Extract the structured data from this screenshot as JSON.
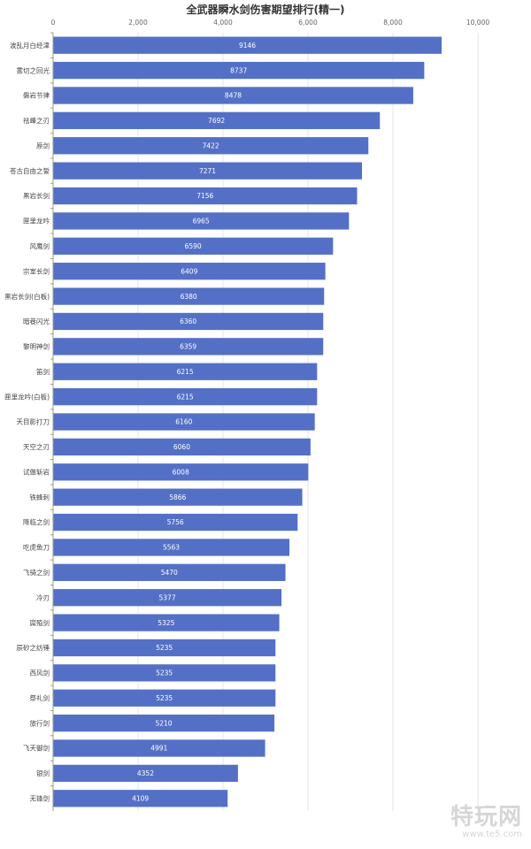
{
  "chart_data": {
    "type": "bar",
    "orientation": "horizontal",
    "title": "全武器瞬水剑伤害期望排行(精一)",
    "xlim": [
      0,
      10000
    ],
    "x_ticks": [
      "0",
      "2,000",
      "4,000",
      "6,000",
      "8,000",
      "10,000"
    ],
    "x_tick_values": [
      0,
      2000,
      4000,
      6000,
      8000,
      10000
    ],
    "grid": true,
    "bar_color": "#5470c6",
    "categories": [
      "波乱月白经津",
      "雾切之回光",
      "磐岩节律",
      "祛峰之刃",
      "原剑",
      "苍古自由之誓",
      "黑岩长剑",
      "匣里龙吟",
      "风鹰剑",
      "宗室长剑",
      "黑岩长剑(白板)",
      "暗巷闪光",
      "黎明神剑",
      "笛剑",
      "匣里龙吟(白板)",
      "天目影打刀",
      "天空之刃",
      "试做斩岩",
      "铁蜂刺",
      "降临之剑",
      "吃虎鱼刀",
      "飞骑之剑",
      "冷刃",
      "腐殖剑",
      "辰砂之纺锤",
      "西风剑",
      "祭礼剑",
      "旅行剑",
      "飞天御剑",
      "银剑",
      "无锋剑"
    ],
    "values": [
      9146,
      8737,
      8478,
      7692,
      7422,
      7271,
      7156,
      6965,
      6590,
      6409,
      6380,
      6360,
      6359,
      6215,
      6215,
      6160,
      6060,
      6008,
      5866,
      5756,
      5563,
      5470,
      5377,
      5325,
      5235,
      5235,
      5235,
      5210,
      4991,
      4352,
      4109
    ]
  },
  "watermark": {
    "logo": "特玩网",
    "url": "www.te5.com"
  }
}
